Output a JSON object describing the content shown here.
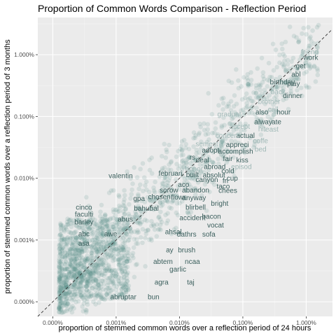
{
  "chart_data": {
    "type": "scatter",
    "title": "Proportion of Common Words Comparison - Reflection Period",
    "xlabel": "proportion of stemmed common words over a reflection period of 24 hours",
    "ylabel": "proportion of stemmed common words over a reflection period of 3 months",
    "scale": "log10",
    "x_ticks": [
      {
        "value": 1e-06,
        "label": "0.000%"
      },
      {
        "value": 1e-05,
        "label": "0.001%"
      },
      {
        "value": 0.0001,
        "label": "0.010%"
      },
      {
        "value": 0.001,
        "label": "0.100%"
      },
      {
        "value": 0.01,
        "label": "1.000%"
      }
    ],
    "y_ticks": [
      {
        "value": 1e-06,
        "label": "0.000%"
      },
      {
        "value": 1e-05,
        "label": "0.001%"
      },
      {
        "value": 0.0001,
        "label": "0.010%"
      },
      {
        "value": 0.001,
        "label": "0.100%"
      },
      {
        "value": 0.01,
        "label": "1.000%"
      }
    ],
    "xlim": [
      5.8e-07,
      0.026
    ],
    "ylim": [
      5.8e-07,
      0.04
    ],
    "reference_line": "y = x (dashed)",
    "grid": true,
    "point_color": "#5a8d8a",
    "label_color_dark": "#3b5f5d",
    "label_color_light": "#9fb8b6",
    "words": [
      {
        "text": "friend",
        "x": 0.0114,
        "y": 0.0101,
        "tone": "light"
      },
      {
        "text": "work",
        "x": 0.0118,
        "y": 0.0083,
        "tone": "dark"
      },
      {
        "text": "get",
        "x": 0.0082,
        "y": 0.006,
        "tone": "dark"
      },
      {
        "text": "abl",
        "x": 0.0069,
        "y": 0.0044,
        "tone": "dark"
      },
      {
        "text": "birthday",
        "x": 0.0042,
        "y": 0.0033,
        "tone": "dark"
      },
      {
        "text": "play",
        "x": 0.0063,
        "y": 0.0031,
        "tone": "dark"
      },
      {
        "text": "back",
        "x": 0.0036,
        "y": 0.0023,
        "tone": "light"
      },
      {
        "text": "dinner",
        "x": 0.0061,
        "y": 0.002,
        "tone": "dark"
      },
      {
        "text": "brother",
        "x": 0.0026,
        "y": 0.0016,
        "tone": "light"
      },
      {
        "text": "call",
        "x": 0.003,
        "y": 0.0012,
        "tone": "light"
      },
      {
        "text": "hour",
        "x": 0.0044,
        "y": 0.00108,
        "tone": "dark"
      },
      {
        "text": "also",
        "x": 0.002,
        "y": 0.00108,
        "tone": "dark"
      },
      {
        "text": "graduat",
        "x": 0.00061,
        "y": 0.001,
        "tone": "light"
      },
      {
        "text": "alway",
        "x": 0.0021,
        "y": 0.00075,
        "tone": "dark"
      },
      {
        "text": "ate",
        "x": 0.0034,
        "y": 0.00075,
        "tone": "dark"
      },
      {
        "text": "accept",
        "x": 0.00089,
        "y": 0.00063,
        "tone": "light"
      },
      {
        "text": "hit",
        "x": 0.002,
        "y": 0.00058,
        "tone": "light"
      },
      {
        "text": "least",
        "x": 0.0028,
        "y": 0.00057,
        "tone": "light"
      },
      {
        "text": "actual",
        "x": 0.0011,
        "y": 0.00045,
        "tone": "dark"
      },
      {
        "text": "concert",
        "x": 0.00056,
        "y": 0.00045,
        "tone": "light"
      },
      {
        "text": "coffe",
        "x": 0.0019,
        "y": 0.00037,
        "tone": "light"
      },
      {
        "text": "semest",
        "x": 0.00027,
        "y": 0.00033,
        "tone": "light"
      },
      {
        "text": "appreci",
        "x": 0.00082,
        "y": 0.00032,
        "tone": "dark"
      },
      {
        "text": "bed",
        "x": 0.0019,
        "y": 0.00027,
        "tone": "light"
      },
      {
        "text": "adopt",
        "x": 0.00031,
        "y": 0.00026,
        "tone": "dark"
      },
      {
        "text": "accomplish",
        "x": 0.00077,
        "y": 0.00025,
        "tone": "dark"
      },
      {
        "text": "rs",
        "x": 0.00016,
        "y": 0.0002,
        "tone": "dark"
      },
      {
        "text": "deal",
        "x": 0.00023,
        "y": 0.00018,
        "tone": "dark"
      },
      {
        "text": "fair",
        "x": 0.00058,
        "y": 0.00019,
        "tone": "dark"
      },
      {
        "text": "kiss",
        "x": 0.00098,
        "y": 0.00018,
        "tone": "dark"
      },
      {
        "text": "episod",
        "x": 0.00095,
        "y": 0.00014,
        "tone": "light"
      },
      {
        "text": "abroad",
        "x": 0.00036,
        "y": 0.00014,
        "tone": "dark"
      },
      {
        "text": "honor",
        "x": 0.00017,
        "y": 0.00013,
        "tone": "light"
      },
      {
        "text": "cold",
        "x": 0.00058,
        "y": 0.00012,
        "tone": "dark"
      },
      {
        "text": "februari",
        "x": 7.2e-05,
        "y": 0.00011,
        "tone": "dark"
      },
      {
        "text": "valentin",
        "x": 1.18e-05,
        "y": 0.0001,
        "tone": "dark"
      },
      {
        "text": "built",
        "x": 0.00016,
        "y": 0.000105,
        "tone": "dark"
      },
      {
        "text": "absolut",
        "x": 0.00035,
        "y": 0.000103,
        "tone": "dark"
      },
      {
        "text": "cup",
        "x": 0.00068,
        "y": 9.1e-05,
        "tone": "dark"
      },
      {
        "text": "canyon",
        "x": 0.00027,
        "y": 8.7e-05,
        "tone": "dark"
      },
      {
        "text": "fri",
        "x": 0.00053,
        "y": 8.4e-05,
        "tone": "dark"
      },
      {
        "text": "aco",
        "x": 0.000116,
        "y": 7.2e-05,
        "tone": "dark"
      },
      {
        "text": "taco",
        "x": 0.00049,
        "y": 6.8e-05,
        "tone": "dark"
      },
      {
        "text": "sorow",
        "x": 6.8e-05,
        "y": 5.9e-05,
        "tone": "dark"
      },
      {
        "text": "abandon",
        "x": 0.00018,
        "y": 5.9e-05,
        "tone": "dark"
      },
      {
        "text": "chees",
        "x": 0.00058,
        "y": 5.8e-05,
        "tone": "dark"
      },
      {
        "text": "anyway",
        "x": 0.00017,
        "y": 4.4e-05,
        "tone": "dark"
      },
      {
        "text": "gpa",
        "x": 2.3e-05,
        "y": 4.3e-05,
        "tone": "dark"
      },
      {
        "text": "chosen",
        "x": 4.8e-05,
        "y": 4.6e-05,
        "tone": "dark"
      },
      {
        "text": "flowr",
        "x": 9.6e-05,
        "y": 4.5e-05,
        "tone": "dark"
      },
      {
        "text": "bright",
        "x": 0.00043,
        "y": 3.6e-05,
        "tone": "dark"
      },
      {
        "text": "cinco",
        "x": 3.1e-06,
        "y": 3.1e-05,
        "tone": "dark"
      },
      {
        "text": "bahubal",
        "x": 3e-05,
        "y": 3e-05,
        "tone": "dark"
      },
      {
        "text": "blirbell",
        "x": 0.00018,
        "y": 3.1e-05,
        "tone": "dark"
      },
      {
        "text": "faculti",
        "x": 3.1e-06,
        "y": 2.4e-05,
        "tone": "dark"
      },
      {
        "text": "bacon",
        "x": 0.00032,
        "y": 2.2e-05,
        "tone": "dark"
      },
      {
        "text": "barley",
        "x": 3.1e-06,
        "y": 1.8e-05,
        "tone": "dark"
      },
      {
        "text": "abus",
        "x": 1.4e-05,
        "y": 2e-05,
        "tone": "dark"
      },
      {
        "text": "accident",
        "x": 0.00016,
        "y": 2.1e-05,
        "tone": "dark"
      },
      {
        "text": "vocat",
        "x": 0.00037,
        "y": 1.6e-05,
        "tone": "dark"
      },
      {
        "text": "abc",
        "x": 3.1e-06,
        "y": 1.15e-05,
        "tone": "dark"
      },
      {
        "text": "awe",
        "x": 8.2e-06,
        "y": 1.15e-05,
        "tone": "dark"
      },
      {
        "text": "ahsal",
        "x": 8e-05,
        "y": 1.25e-05,
        "tone": "dark"
      },
      {
        "text": "dathrs",
        "x": 0.00013,
        "y": 1.13e-05,
        "tone": "dark"
      },
      {
        "text": "sofa",
        "x": 0.00029,
        "y": 1.13e-05,
        "tone": "dark"
      },
      {
        "text": "asa",
        "x": 3.1e-06,
        "y": 8.1e-06,
        "tone": "dark"
      },
      {
        "text": "brush",
        "x": 0.00013,
        "y": 6.3e-06,
        "tone": "dark"
      },
      {
        "text": "ay",
        "x": 7e-05,
        "y": 6.3e-06,
        "tone": "dark"
      },
      {
        "text": "abtem",
        "x": 5.5e-05,
        "y": 4.1e-06,
        "tone": "dark"
      },
      {
        "text": "ncaa",
        "x": 0.00016,
        "y": 4.1e-06,
        "tone": "dark"
      },
      {
        "text": "garlic",
        "x": 9.4e-05,
        "y": 3.1e-06,
        "tone": "dark"
      },
      {
        "text": "agra",
        "x": 5.2e-05,
        "y": 1.9e-06,
        "tone": "dark"
      },
      {
        "text": "taj",
        "x": 0.00015,
        "y": 1.9e-06,
        "tone": "dark"
      },
      {
        "text": "abruptar",
        "x": 1.3e-05,
        "y": 1.1e-06,
        "tone": "dark"
      },
      {
        "text": "bun",
        "x": 3.9e-05,
        "y": 1.1e-06,
        "tone": "dark"
      }
    ]
  }
}
